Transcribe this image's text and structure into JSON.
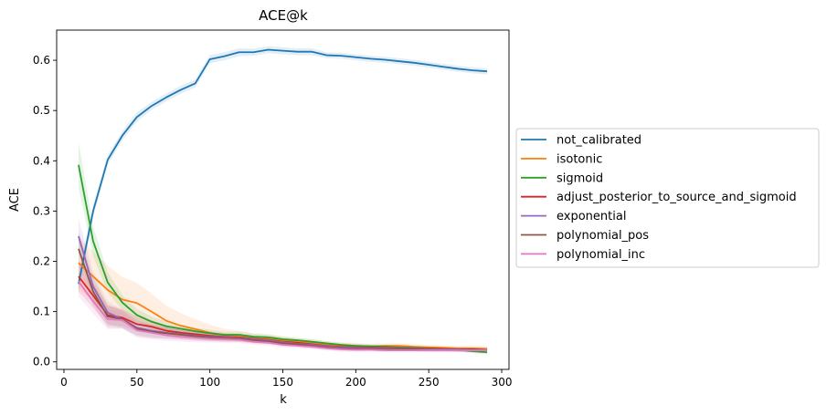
{
  "chart_data": {
    "type": "line",
    "title": "ACE@k",
    "xlabel": "k",
    "ylabel": "ACE",
    "xlim": [
      -5,
      305
    ],
    "ylim": [
      -0.015,
      0.66
    ],
    "xticks": [
      0,
      50,
      100,
      150,
      200,
      250,
      300
    ],
    "yticks": [
      0.0,
      0.1,
      0.2,
      0.3,
      0.4,
      0.5,
      0.6
    ],
    "grid": false,
    "legend_position": "right-outside",
    "x": [
      10,
      20,
      30,
      40,
      50,
      60,
      70,
      80,
      90,
      100,
      110,
      120,
      130,
      140,
      150,
      160,
      170,
      180,
      190,
      200,
      210,
      220,
      230,
      240,
      250,
      260,
      270,
      280,
      290
    ],
    "series": [
      {
        "name": "not_calibrated",
        "color": "#1f77b4",
        "values": [
          0.155,
          0.3,
          0.402,
          0.45,
          0.487,
          0.509,
          0.526,
          0.541,
          0.554,
          0.602,
          0.608,
          0.616,
          0.616,
          0.621,
          0.619,
          0.617,
          0.617,
          0.61,
          0.609,
          0.606,
          0.603,
          0.601,
          0.598,
          0.595,
          0.591,
          0.587,
          0.583,
          0.58,
          0.578
        ],
        "band": [
          0.02,
          0.012,
          0.01,
          0.009,
          0.009,
          0.008,
          0.008,
          0.008,
          0.008,
          0.008,
          0.008,
          0.008,
          0.007,
          0.007,
          0.007,
          0.007,
          0.007,
          0.006,
          0.006,
          0.006,
          0.006,
          0.006,
          0.006,
          0.006,
          0.006,
          0.006,
          0.006,
          0.006,
          0.006
        ]
      },
      {
        "name": "isotonic",
        "color": "#ff7f0e",
        "values": [
          0.197,
          0.17,
          0.143,
          0.124,
          0.117,
          0.1,
          0.082,
          0.072,
          0.065,
          0.058,
          0.053,
          0.051,
          0.047,
          0.046,
          0.043,
          0.04,
          0.038,
          0.035,
          0.033,
          0.032,
          0.031,
          0.032,
          0.032,
          0.03,
          0.029,
          0.028,
          0.027,
          0.027,
          0.026
        ],
        "band": [
          0.05,
          0.05,
          0.048,
          0.045,
          0.04,
          0.036,
          0.03,
          0.025,
          0.02,
          0.016,
          0.013,
          0.011,
          0.01,
          0.009,
          0.008,
          0.007,
          0.007,
          0.006,
          0.006,
          0.006,
          0.005,
          0.005,
          0.005,
          0.005,
          0.005,
          0.005,
          0.005,
          0.005,
          0.005
        ]
      },
      {
        "name": "sigmoid",
        "color": "#2ca02c",
        "values": [
          0.392,
          0.24,
          0.158,
          0.118,
          0.093,
          0.08,
          0.071,
          0.066,
          0.061,
          0.057,
          0.054,
          0.054,
          0.05,
          0.049,
          0.045,
          0.043,
          0.04,
          0.037,
          0.034,
          0.032,
          0.031,
          0.03,
          0.029,
          0.028,
          0.027,
          0.026,
          0.024,
          0.021,
          0.019
        ],
        "band": [
          0.045,
          0.03,
          0.02,
          0.015,
          0.012,
          0.01,
          0.009,
          0.008,
          0.007,
          0.007,
          0.006,
          0.006,
          0.006,
          0.005,
          0.005,
          0.005,
          0.005,
          0.004,
          0.004,
          0.004,
          0.004,
          0.004,
          0.004,
          0.004,
          0.004,
          0.004,
          0.004,
          0.004,
          0.004
        ]
      },
      {
        "name": "adjust_posterior_to_source_and_sigmoid",
        "color": "#d62728",
        "values": [
          0.17,
          0.132,
          0.093,
          0.088,
          0.075,
          0.07,
          0.062,
          0.058,
          0.055,
          0.052,
          0.05,
          0.049,
          0.046,
          0.044,
          0.04,
          0.038,
          0.035,
          0.032,
          0.03,
          0.029,
          0.028,
          0.028,
          0.027,
          0.027,
          0.026,
          0.026,
          0.025,
          0.025,
          0.024
        ],
        "band": [
          0.03,
          0.025,
          0.02,
          0.017,
          0.015,
          0.013,
          0.011,
          0.01,
          0.009,
          0.008,
          0.007,
          0.007,
          0.006,
          0.006,
          0.006,
          0.005,
          0.005,
          0.005,
          0.005,
          0.005,
          0.004,
          0.004,
          0.004,
          0.004,
          0.004,
          0.004,
          0.004,
          0.004,
          0.004
        ]
      },
      {
        "name": "exponential",
        "color": "#9467bd",
        "values": [
          0.25,
          0.15,
          0.098,
          0.085,
          0.068,
          0.062,
          0.058,
          0.055,
          0.052,
          0.05,
          0.049,
          0.048,
          0.045,
          0.043,
          0.039,
          0.036,
          0.034,
          0.031,
          0.029,
          0.028,
          0.027,
          0.027,
          0.026,
          0.026,
          0.025,
          0.025,
          0.025,
          0.024,
          0.024
        ],
        "band": [
          0.035,
          0.028,
          0.022,
          0.018,
          0.015,
          0.013,
          0.011,
          0.01,
          0.009,
          0.008,
          0.007,
          0.007,
          0.006,
          0.006,
          0.006,
          0.005,
          0.005,
          0.005,
          0.005,
          0.005,
          0.004,
          0.004,
          0.004,
          0.004,
          0.004,
          0.004,
          0.004,
          0.004,
          0.004
        ]
      },
      {
        "name": "polynomial_pos",
        "color": "#8c564b",
        "values": [
          0.225,
          0.14,
          0.09,
          0.085,
          0.066,
          0.06,
          0.057,
          0.054,
          0.051,
          0.049,
          0.047,
          0.047,
          0.043,
          0.041,
          0.037,
          0.035,
          0.032,
          0.029,
          0.027,
          0.026,
          0.026,
          0.025,
          0.025,
          0.025,
          0.024,
          0.024,
          0.024,
          0.024,
          0.023
        ],
        "band": [
          0.035,
          0.028,
          0.022,
          0.018,
          0.015,
          0.013,
          0.011,
          0.01,
          0.009,
          0.008,
          0.007,
          0.007,
          0.006,
          0.006,
          0.006,
          0.005,
          0.005,
          0.005,
          0.005,
          0.005,
          0.004,
          0.004,
          0.004,
          0.004,
          0.004,
          0.004,
          0.004,
          0.004,
          0.004
        ]
      },
      {
        "name": "polynomial_inc",
        "color": "#e377c2",
        "values": [
          0.16,
          0.12,
          0.085,
          0.083,
          0.063,
          0.058,
          0.053,
          0.05,
          0.048,
          0.046,
          0.045,
          0.044,
          0.04,
          0.038,
          0.034,
          0.032,
          0.03,
          0.027,
          0.025,
          0.024,
          0.024,
          0.023,
          0.023,
          0.023,
          0.023,
          0.023,
          0.023,
          0.023,
          0.023
        ],
        "band": [
          0.03,
          0.025,
          0.02,
          0.017,
          0.015,
          0.013,
          0.011,
          0.01,
          0.009,
          0.008,
          0.007,
          0.007,
          0.006,
          0.006,
          0.006,
          0.005,
          0.005,
          0.005,
          0.005,
          0.005,
          0.004,
          0.004,
          0.004,
          0.004,
          0.004,
          0.004,
          0.004,
          0.004,
          0.004
        ]
      }
    ]
  }
}
